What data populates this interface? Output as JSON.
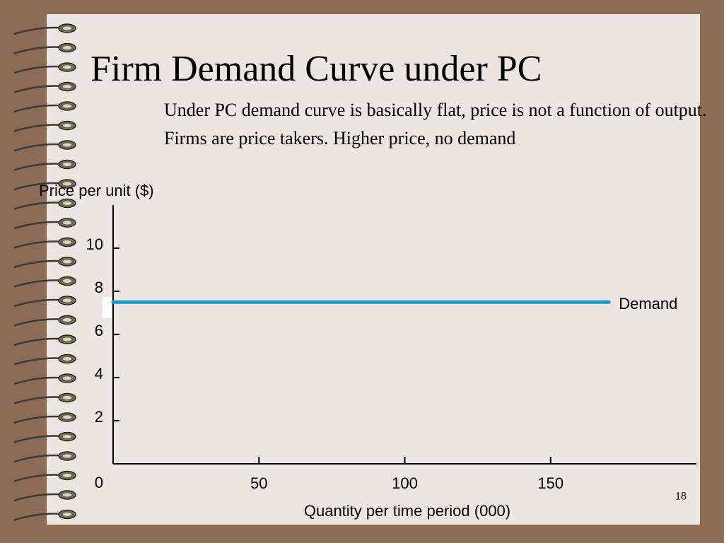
{
  "chart_data": {
    "type": "line",
    "title": "Firm Demand Curve under PC",
    "subtitle": "Under PC demand curve is basically flat, price is not a function of output.  Firms are price takers.  Higher price, no demand",
    "ylabel": "Price per unit ($)",
    "xlabel": "Quantity per time period (000)",
    "x": [
      0,
      170
    ],
    "series": [
      {
        "name": "Demand",
        "color": "#1a9bcc",
        "values": [
          7.5,
          7.5
        ]
      }
    ],
    "xlim": [
      0,
      200
    ],
    "xticks": [
      50,
      100,
      150
    ],
    "ylim": [
      0,
      12
    ],
    "yticks": [
      0,
      2,
      4,
      6,
      8,
      10
    ],
    "grid": false
  },
  "slide_number": "18"
}
